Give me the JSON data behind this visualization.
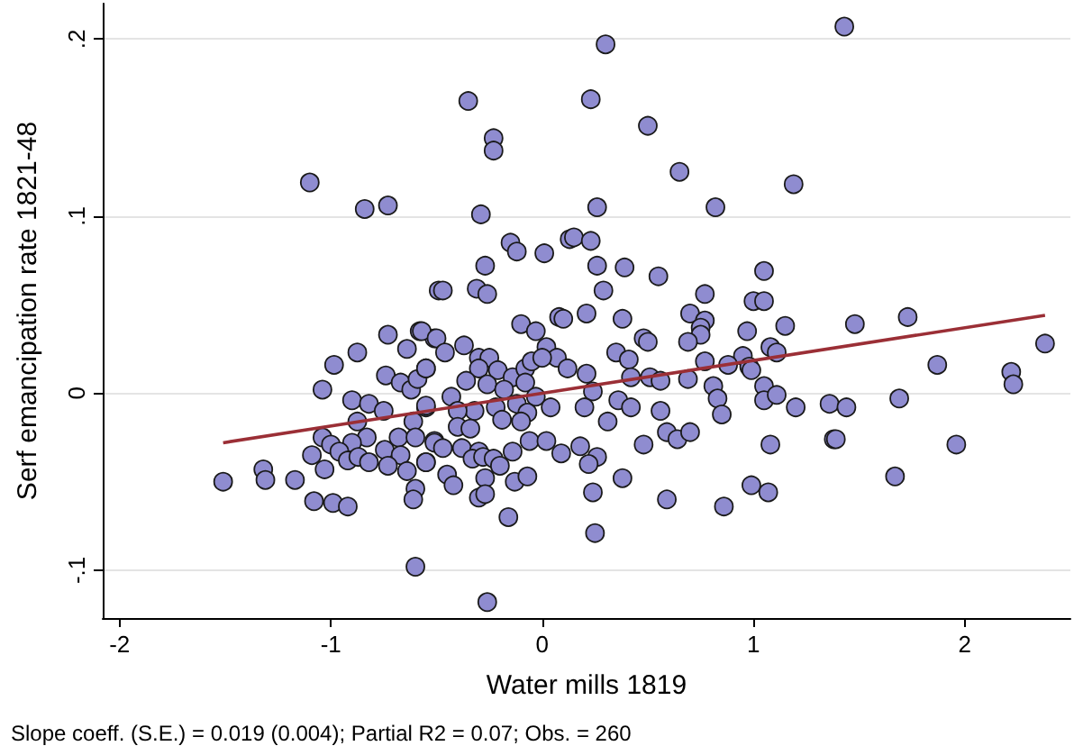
{
  "chart_data": {
    "type": "scatter",
    "xlabel": "Water mills 1819",
    "ylabel": "Serf emancipation rate 1821-48",
    "annotations": [
      "Slope coeff. (S.E.) = 0.019 (0.004); Partial R2 = 0.07; Obs. = 260"
    ],
    "xlim": [
      -2.08,
      2.5
    ],
    "ylim": [
      -0.127,
      0.22
    ],
    "xticks": [
      -2,
      -1,
      0,
      1,
      2
    ],
    "yticks": [
      {
        "value": -0.1,
        "label": "-.1"
      },
      0,
      {
        "value": 0.1,
        "label": ".1"
      },
      {
        "value": 0.2,
        "label": ".2"
      }
    ],
    "grid": "y",
    "marker": "circle",
    "series": [
      {
        "color": "#8f8cd0",
        "x": [
          -1.1,
          -0.84,
          -0.73,
          -0.49,
          -0.73,
          -0.64,
          -0.58,
          -0.51,
          -0.875,
          -0.985,
          -1.04,
          -0.74,
          -0.67,
          -0.62,
          -0.59,
          -0.55,
          -0.9,
          -0.82,
          -0.75,
          -0.55,
          -0.875,
          -0.61,
          -1.04,
          -1.0,
          -0.83,
          -0.9,
          -0.68,
          -0.6,
          -0.51,
          -1.09,
          -0.96,
          -0.92,
          -0.87,
          -0.82,
          -0.745,
          -0.67,
          -0.73,
          -0.64,
          -0.55,
          -1.03,
          -1.32,
          -1.31,
          -1.51,
          -1.17,
          -1.08,
          -0.99,
          -0.92,
          -0.6,
          -0.61,
          -0.6,
          0.3,
          -0.35,
          0.23,
          0.5,
          -0.23,
          -0.23,
          0.26,
          -0.29,
          -0.15,
          -0.12,
          0.01,
          0.13,
          0.15,
          0.23,
          -0.27,
          0.26,
          0.39,
          -0.47,
          -0.31,
          -0.26,
          0.29,
          -0.57,
          -0.5,
          -0.37,
          -0.1,
          -0.03,
          0.08,
          0.1,
          0.21,
          0.38,
          0.48,
          0.02,
          0.07,
          0.35,
          0.41,
          -0.55,
          -0.46,
          -0.3,
          -0.25,
          -0.3,
          -0.21,
          -0.14,
          -0.08,
          -0.05,
          0.0,
          -0.36,
          -0.26,
          -0.18,
          -0.08,
          0.12,
          0.21,
          0.42,
          -0.55,
          -0.43,
          -0.32,
          -0.4,
          -0.03,
          0.04,
          0.24,
          0.2,
          0.36,
          0.42,
          0.31,
          -0.22,
          -0.12,
          -0.07,
          -0.4,
          -0.34,
          -0.19,
          -0.1,
          -0.06,
          0.02,
          0.09,
          0.18,
          0.26,
          0.22,
          0.48,
          -0.51,
          -0.47,
          -0.38,
          -0.3,
          -0.55,
          -0.45,
          -0.42,
          -0.33,
          -0.28,
          -0.23,
          -0.14,
          -0.27,
          -0.2,
          -0.13,
          -0.07,
          -0.3,
          -0.27,
          0.38,
          0.24,
          -0.16,
          0.25,
          -0.26,
          1.43,
          0.65,
          1.19,
          0.82,
          0.55,
          1.05,
          0.77,
          1.0,
          1.05,
          0.7,
          0.77,
          0.75,
          0.75,
          1.15,
          1.48,
          1.73,
          0.97,
          0.5,
          0.69,
          1.08,
          1.11,
          0.95,
          0.77,
          0.88,
          0.98,
          0.99,
          1.87,
          2.38,
          2.22,
          2.23,
          0.51,
          0.56,
          0.69,
          0.81,
          0.83,
          0.85,
          1.05,
          1.05,
          1.11,
          1.2,
          1.36,
          1.44,
          1.69,
          0.56,
          0.59,
          0.64,
          0.7,
          1.08,
          1.38,
          1.39,
          1.96,
          1.67,
          0.59,
          0.86,
          0.99,
          1.07
        ],
        "values": [
          0.119,
          0.104,
          0.106,
          0.058,
          0.033,
          0.025,
          0.035,
          0.031,
          0.023,
          0.016,
          0.002,
          0.01,
          0.006,
          0.002,
          0.008,
          0.014,
          -0.004,
          -0.006,
          -0.01,
          -0.008,
          -0.016,
          -0.016,
          -0.025,
          -0.029,
          -0.025,
          -0.028,
          -0.025,
          -0.025,
          -0.027,
          -0.035,
          -0.033,
          -0.038,
          -0.036,
          -0.039,
          -0.032,
          -0.035,
          -0.041,
          -0.044,
          -0.039,
          -0.043,
          -0.043,
          -0.049,
          -0.05,
          -0.049,
          -0.061,
          -0.062,
          -0.064,
          -0.054,
          -0.06,
          -0.098,
          0.197,
          0.165,
          0.166,
          0.151,
          0.144,
          0.137,
          0.105,
          0.101,
          0.085,
          0.08,
          0.079,
          0.087,
          0.088,
          0.086,
          0.072,
          0.072,
          0.071,
          0.058,
          0.059,
          0.056,
          0.058,
          0.035,
          0.031,
          0.027,
          0.039,
          0.035,
          0.043,
          0.042,
          0.045,
          0.042,
          0.031,
          0.026,
          0.02,
          0.023,
          0.019,
          0.014,
          0.023,
          0.02,
          0.02,
          0.014,
          0.013,
          0.009,
          0.014,
          0.018,
          0.02,
          0.007,
          0.005,
          0.002,
          0.006,
          0.014,
          0.011,
          0.009,
          -0.007,
          -0.002,
          -0.01,
          -0.01,
          -0.002,
          -0.008,
          0.001,
          -0.008,
          -0.004,
          -0.008,
          -0.016,
          -0.008,
          -0.006,
          -0.011,
          -0.019,
          -0.02,
          -0.015,
          -0.016,
          -0.027,
          -0.027,
          -0.034,
          -0.03,
          -0.036,
          -0.04,
          -0.029,
          -0.028,
          -0.031,
          -0.031,
          -0.033,
          -0.039,
          -0.046,
          -0.052,
          -0.037,
          -0.036,
          -0.037,
          -0.033,
          -0.048,
          -0.041,
          -0.05,
          -0.047,
          -0.059,
          -0.057,
          -0.048,
          -0.056,
          -0.07,
          -0.079,
          -0.118,
          0.207,
          0.125,
          0.118,
          0.105,
          0.066,
          0.069,
          0.056,
          0.052,
          0.052,
          0.045,
          0.041,
          0.037,
          0.033,
          0.038,
          0.039,
          0.043,
          0.035,
          0.029,
          0.029,
          0.026,
          0.023,
          0.021,
          0.018,
          0.016,
          0.015,
          0.013,
          0.016,
          0.028,
          0.012,
          0.005,
          0.009,
          0.007,
          0.008,
          0.004,
          -0.003,
          -0.012,
          0.004,
          -0.004,
          -0.001,
          -0.008,
          -0.006,
          -0.008,
          -0.003,
          -0.01,
          -0.022,
          -0.026,
          -0.022,
          -0.029,
          -0.026,
          -0.026,
          -0.029,
          -0.047,
          -0.06,
          -0.064,
          -0.052,
          -0.056
        ]
      },
      {
        "type": "line",
        "color": "#9b2f36",
        "marker": "none",
        "line_style": "solid",
        "x": [
          -1.51,
          2.38
        ],
        "values": [
          -0.028,
          0.044
        ]
      }
    ]
  }
}
